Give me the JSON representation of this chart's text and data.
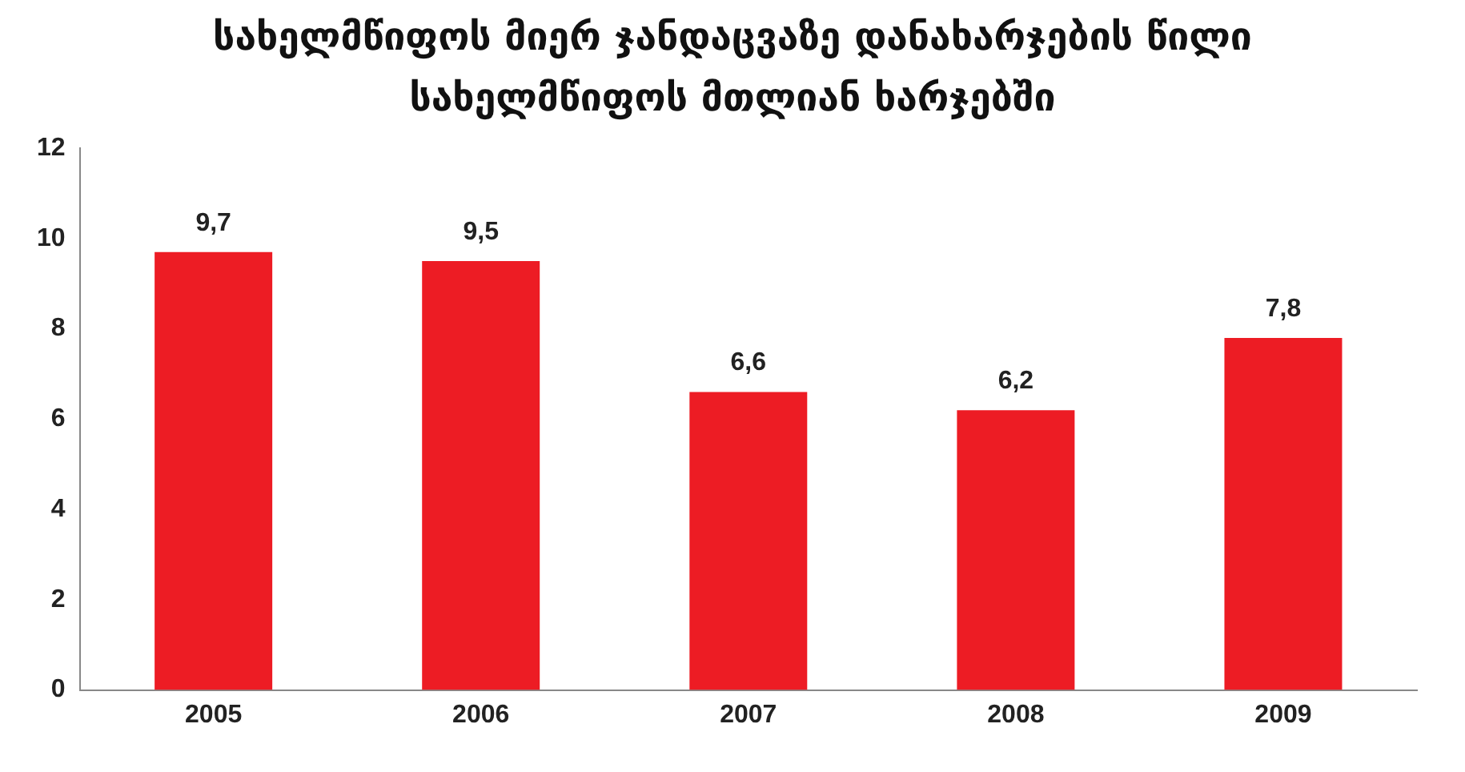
{
  "chart_data": {
    "type": "bar",
    "title": "სახელმწიფოს მიერ ჯანდაცვაზე დანახარჯების წილი\nსახელმწიფოს მთლიან ხარჯებში",
    "categories": [
      "2005",
      "2006",
      "2007",
      "2008",
      "2009"
    ],
    "values": [
      9.7,
      9.5,
      6.6,
      6.2,
      7.8
    ],
    "value_labels": [
      "9,7",
      "9,5",
      "6,6",
      "6,2",
      "7,8"
    ],
    "color": "#ed1c24",
    "ylim": [
      0,
      12
    ],
    "yticks": [
      0,
      2,
      4,
      6,
      8,
      10,
      12
    ],
    "grid": false,
    "legend": false
  }
}
